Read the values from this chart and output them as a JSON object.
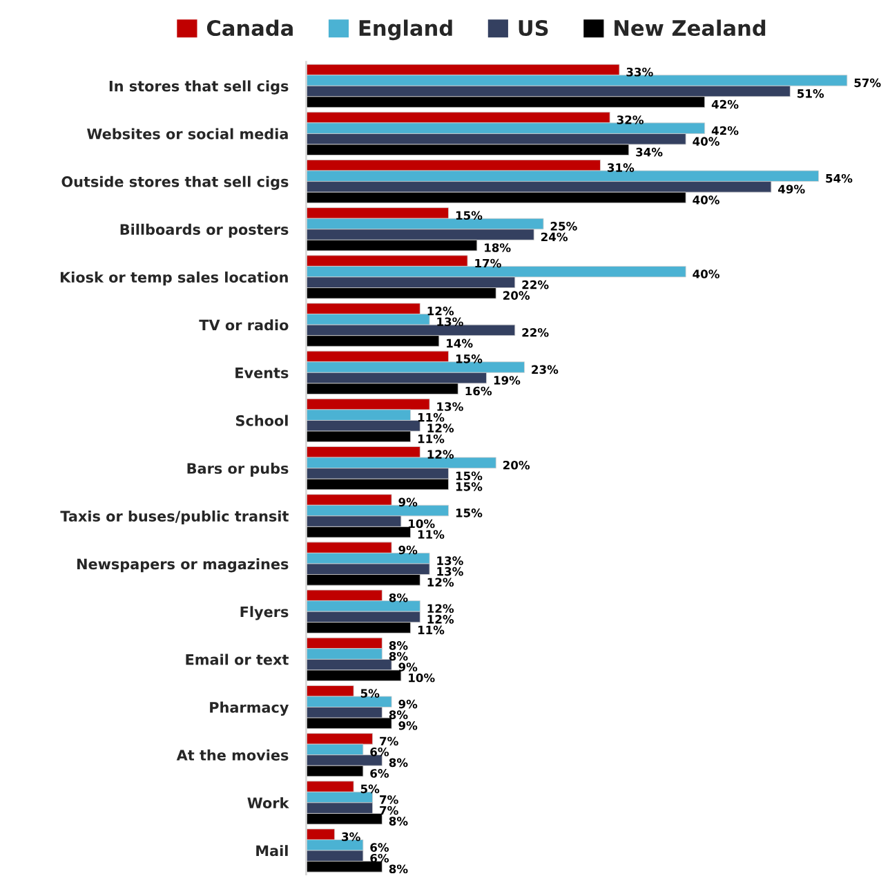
{
  "chart_data": {
    "type": "bar",
    "orientation": "horizontal",
    "categories": [
      "In stores that sell cigs",
      "Websites or social media",
      "Outside stores that sell cigs",
      "Billboards or posters",
      "Kiosk or temp sales location",
      "TV or radio",
      "Events",
      "School",
      "Bars or pubs",
      "Taxis or buses/public transit",
      "Newspapers or magazines",
      "Flyers",
      "Email or text",
      "Pharmacy",
      "At the movies",
      "Work",
      "Mail"
    ],
    "series": [
      {
        "name": "Canada",
        "color": "#c00000",
        "values": [
          33,
          32,
          31,
          15,
          17,
          12,
          15,
          13,
          12,
          9,
          9,
          8,
          8,
          5,
          7,
          5,
          3
        ],
        "value_labels": [
          "33%",
          "32%",
          "31%",
          "15%",
          "17%",
          "12%",
          "15%",
          "13%",
          "12%",
          "9%",
          "9%",
          "8%",
          "8%",
          "5%",
          "7%",
          "5%",
          "3%"
        ]
      },
      {
        "name": "England",
        "color": "#4bb2d3",
        "values": [
          57,
          42,
          54,
          25,
          40,
          13,
          23,
          11,
          20,
          15,
          13,
          12,
          8,
          9,
          6,
          7,
          6
        ],
        "value_labels": [
          "57%",
          "42%",
          "54%",
          "25%",
          "40%",
          "13%",
          "23%",
          "11%",
          "20%",
          "15%",
          "13%",
          "12%",
          "8%",
          "9%",
          "6%",
          "7%",
          "6%"
        ]
      },
      {
        "name": "US",
        "color": "#344060",
        "values": [
          51,
          40,
          49,
          24,
          22,
          22,
          19,
          12,
          15,
          10,
          13,
          12,
          9,
          8,
          8,
          7,
          6
        ],
        "value_labels": [
          "51%",
          "40%",
          "49%",
          "24%",
          "22%",
          "22%",
          "19%",
          "12%",
          "15%",
          "10%",
          "13%",
          "12%",
          "9%",
          "8%",
          "8%",
          "7%",
          "6%"
        ]
      },
      {
        "name": "New Zealand",
        "color": "#000000",
        "values": [
          42,
          34,
          40,
          18,
          20,
          14,
          16,
          11,
          15,
          11,
          12,
          11,
          10,
          9,
          6,
          8,
          8
        ],
        "value_labels": [
          "42%",
          "34%",
          "40%",
          "18%",
          "20%",
          "14%",
          "16%",
          "11%",
          "15%",
          "11%",
          "12%",
          "11%",
          "10%",
          "9%",
          "6%",
          "8%",
          "8%"
        ]
      }
    ],
    "tick_labels": "y",
    "legend": "top"
  }
}
